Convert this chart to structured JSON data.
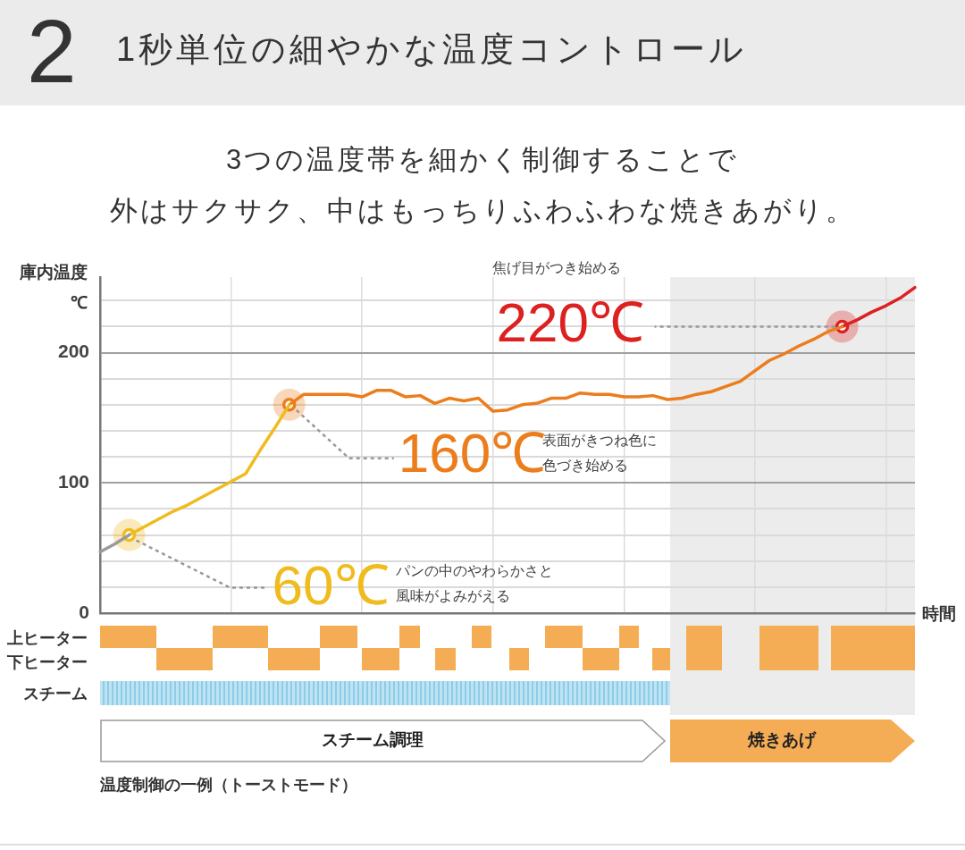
{
  "chart_data": {
    "type": "line",
    "title": "1秒単位の細やかな温度コントロール",
    "subtitle": "3つの温度帯を細かく制御することで",
    "xlabel": "時間",
    "ylabel": "庫内温度\n℃",
    "categories": [
      null,
      null,
      null,
      null,
      null,
      null,
      null,
      null,
      null,
      null,
      null,
      null,
      null,
      null,
      null,
      null,
      null,
      null,
      null,
      null,
      null,
      null,
      null,
      null,
      null,
      null,
      null,
      null,
      null,
      null,
      null,
      null,
      null,
      null,
      null,
      null,
      null,
      null,
      null,
      null,
      null,
      null,
      null,
      null,
      null,
      null,
      null,
      null,
      null,
      null,
      null,
      null,
      null,
      null,
      null,
      null,
      null
    ],
    "ylim": [
      0,
      258
    ],
    "yticks": [
      0,
      {
        "value": 20,
        "label": null
      },
      {
        "value": 40,
        "label": null
      },
      {
        "value": 60,
        "label": null
      },
      {
        "value": 80,
        "label": null
      },
      100,
      {
        "value": 120,
        "label": null
      },
      {
        "value": 140,
        "label": null
      },
      {
        "value": 160,
        "label": null
      },
      {
        "value": 180,
        "label": null
      },
      200,
      {
        "value": 220,
        "label": null
      },
      {
        "value": 240,
        "label": null
      }
    ],
    "tick_labels": "y",
    "grid": true,
    "legend": false,
    "marker": "none",
    "line_style": "solid",
    "series": [
      {
        "color": "#9a9a9a",
        "values": [
          47,
          53,
          60,
          null,
          null,
          null,
          null,
          null,
          null,
          null,
          null,
          null,
          null,
          null,
          null,
          null,
          null,
          null,
          null,
          null,
          null,
          null,
          null,
          null,
          null,
          null,
          null,
          null,
          null,
          null,
          null,
          null,
          null,
          null,
          null,
          null,
          null,
          null,
          null,
          null,
          null,
          null,
          null,
          null,
          null,
          null,
          null,
          null,
          null,
          null,
          null,
          null,
          null,
          null,
          null,
          null,
          null
        ]
      },
      {
        "color": "#f0bb1e",
        "values": [
          null,
          null,
          60,
          66,
          72,
          78,
          83,
          89,
          95,
          101,
          107,
          125,
          142,
          160,
          null,
          null,
          null,
          null,
          null,
          null,
          null,
          null,
          null,
          null,
          null,
          null,
          null,
          null,
          null,
          null,
          null,
          null,
          null,
          null,
          null,
          null,
          null,
          null,
          null,
          null,
          null,
          null,
          null,
          null,
          null,
          null,
          null,
          null,
          null,
          null,
          null,
          null,
          null,
          null,
          null,
          null,
          null
        ]
      },
      {
        "color": "#ec7d1c",
        "values": [
          null,
          null,
          null,
          null,
          null,
          null,
          null,
          null,
          null,
          null,
          null,
          null,
          null,
          160,
          168,
          168,
          168,
          168,
          166,
          171,
          171,
          166,
          167,
          161,
          165,
          163,
          165,
          155,
          156,
          160,
          161,
          165,
          165,
          169,
          168,
          168,
          166,
          166,
          167,
          164,
          165,
          168,
          170,
          174,
          178,
          186,
          194,
          199,
          205,
          210,
          216,
          220,
          null,
          null,
          null,
          null,
          null
        ]
      },
      {
        "color": "#dd2020",
        "values": [
          null,
          null,
          null,
          null,
          null,
          null,
          null,
          null,
          null,
          null,
          null,
          null,
          null,
          null,
          null,
          null,
          null,
          null,
          null,
          null,
          null,
          null,
          null,
          null,
          null,
          null,
          null,
          null,
          null,
          null,
          null,
          null,
          null,
          null,
          null,
          null,
          null,
          null,
          null,
          null,
          null,
          null,
          null,
          null,
          null,
          null,
          null,
          null,
          null,
          null,
          null,
          220,
          225,
          231,
          236,
          242,
          250
        ]
      },
      {
        "type": "scatter",
        "marker": "circle",
        "color": "#f0bb1e",
        "values": [
          null,
          null,
          60,
          null,
          null,
          null,
          null,
          null,
          null,
          null,
          null,
          null,
          null,
          null,
          null,
          null,
          null,
          null,
          null,
          null,
          null,
          null,
          null,
          null,
          null,
          null,
          null,
          null,
          null,
          null,
          null,
          null,
          null,
          null,
          null,
          null,
          null,
          null,
          null,
          null,
          null,
          null,
          null,
          null,
          null,
          null,
          null,
          null,
          null,
          null,
          null,
          null,
          null,
          null,
          null,
          null,
          null
        ]
      },
      {
        "type": "scatter",
        "marker": "circle",
        "color": "#ec7d1c",
        "values": [
          null,
          null,
          null,
          null,
          null,
          null,
          null,
          null,
          null,
          null,
          null,
          null,
          null,
          160,
          null,
          null,
          null,
          null,
          null,
          null,
          null,
          null,
          null,
          null,
          null,
          null,
          null,
          null,
          null,
          null,
          null,
          null,
          null,
          null,
          null,
          null,
          null,
          null,
          null,
          null,
          null,
          null,
          null,
          null,
          null,
          null,
          null,
          null,
          null,
          null,
          null,
          null,
          null,
          null,
          null,
          null,
          null
        ]
      },
      {
        "type": "scatter",
        "marker": "circle",
        "color": "#dd2020",
        "values": [
          null,
          null,
          null,
          null,
          null,
          null,
          null,
          null,
          null,
          null,
          null,
          null,
          null,
          null,
          null,
          null,
          null,
          null,
          null,
          null,
          null,
          null,
          null,
          null,
          null,
          null,
          null,
          null,
          null,
          null,
          null,
          null,
          null,
          null,
          null,
          null,
          null,
          null,
          null,
          null,
          null,
          null,
          null,
          null,
          null,
          null,
          null,
          null,
          null,
          null,
          null,
          220,
          null,
          null,
          null,
          null,
          null
        ]
      }
    ],
    "annotations": [
      "2",
      "外はサクサク、中はもっちりふわふわな焼きあがり。",
      "60℃",
      "パンの中のやわらかさと風味がよみがえる",
      "160℃",
      "表面がきつね色に色づき始める",
      "220℃",
      "焦げ目がつき始める",
      "上ヒーター",
      "下ヒーター",
      "スチーム",
      "スチーム調理",
      "焼きあげ",
      "温度制御の一例（トーストモード）"
    ]
  }
}
